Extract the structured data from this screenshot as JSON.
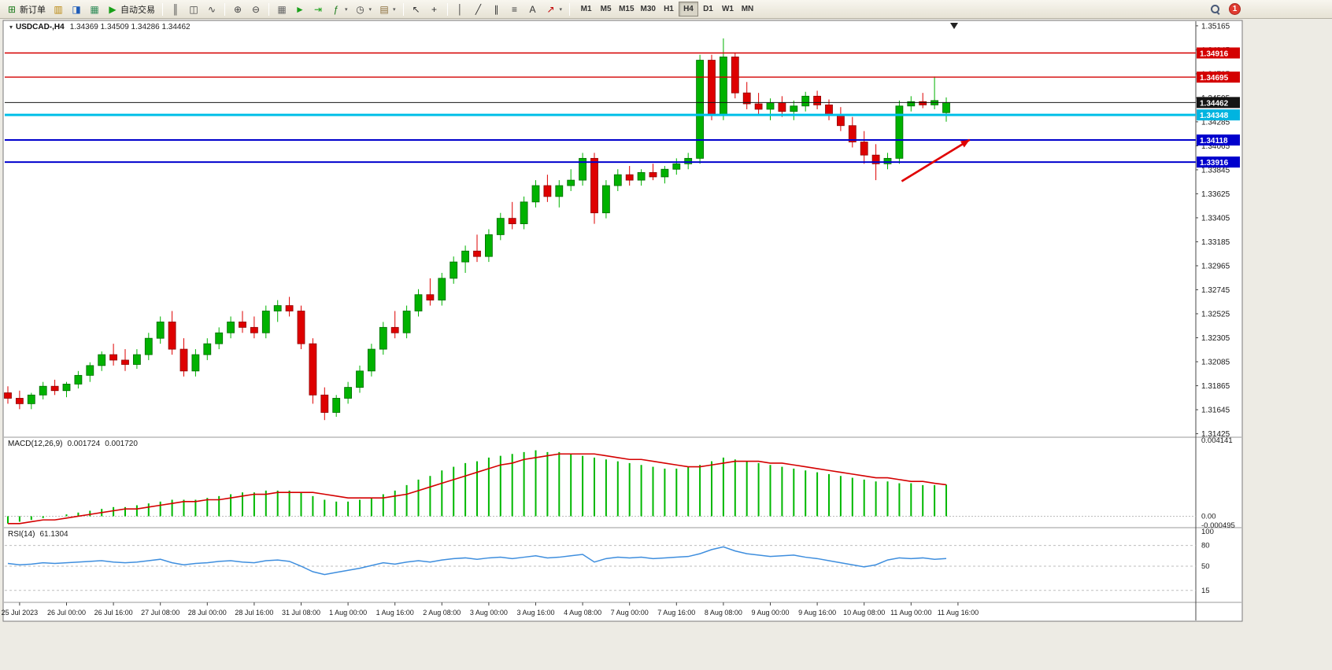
{
  "toolbar": {
    "timeframes": [
      "M1",
      "M5",
      "M15",
      "M30",
      "H1",
      "H4",
      "D1",
      "W1",
      "MN"
    ],
    "active_timeframe": "H4",
    "notification_count": "1",
    "items": [
      {
        "type": "button",
        "name": "new-order",
        "glyph": "⊞",
        "color": "#1a7a1a",
        "label": "新订单"
      },
      {
        "type": "button",
        "name": "market-watch",
        "glyph": "▥",
        "color": "#b8860b"
      },
      {
        "type": "button",
        "name": "navigator",
        "glyph": "◨",
        "color": "#1e5bb8"
      },
      {
        "type": "button",
        "name": "terminal",
        "glyph": "▦",
        "color": "#2e8b57"
      },
      {
        "type": "button",
        "name": "auto-trading",
        "glyph": "▶",
        "color": "#18a018",
        "label": "自动交易"
      },
      {
        "type": "sep"
      },
      {
        "type": "button",
        "name": "bar-chart",
        "glyph": "║",
        "color": "#444"
      },
      {
        "type": "button",
        "name": "candlestick-chart",
        "glyph": "◫",
        "color": "#444"
      },
      {
        "type": "button",
        "name": "line-chart",
        "glyph": "∿",
        "color": "#444"
      },
      {
        "type": "sep"
      },
      {
        "type": "button",
        "name": "zoom-in",
        "glyph": "⊕",
        "color": "#444"
      },
      {
        "type": "button",
        "name": "zoom-out",
        "glyph": "⊖",
        "color": "#444"
      },
      {
        "type": "sep"
      },
      {
        "type": "button",
        "name": "tile-windows",
        "glyph": "▦",
        "color": "#666"
      },
      {
        "type": "button",
        "name": "auto-scroll",
        "glyph": "►",
        "color": "#18a018"
      },
      {
        "type": "button",
        "name": "chart-shift",
        "glyph": "⇥",
        "color": "#18a018"
      },
      {
        "type": "button",
        "name": "indicators",
        "glyph": "ƒ",
        "color": "#1a7a1a",
        "dropdown": true
      },
      {
        "type": "button",
        "name": "periods",
        "glyph": "◷",
        "color": "#444",
        "dropdown": true
      },
      {
        "type": "button",
        "name": "templates",
        "glyph": "▤",
        "color": "#8a6d3b",
        "dropdown": true
      },
      {
        "type": "sep"
      },
      {
        "type": "button",
        "name": "cursor",
        "glyph": "↖",
        "color": "#333"
      },
      {
        "type": "button",
        "name": "crosshair",
        "glyph": "+",
        "color": "#333"
      },
      {
        "type": "sep"
      },
      {
        "type": "button",
        "name": "vertical-line",
        "glyph": "│",
        "color": "#333"
      },
      {
        "type": "button",
        "name": "trendline",
        "glyph": "╱",
        "color": "#333"
      },
      {
        "type": "button",
        "name": "equidistant-channel",
        "glyph": "∥",
        "color": "#333"
      },
      {
        "type": "button",
        "name": "fibonacci",
        "glyph": "≡",
        "color": "#333"
      },
      {
        "type": "button",
        "name": "text",
        "glyph": "A",
        "color": "#333"
      },
      {
        "type": "button",
        "name": "arrows",
        "glyph": "↗",
        "color": "#c00000",
        "dropdown": true
      },
      {
        "type": "sep"
      },
      {
        "type": "timeframes"
      }
    ]
  },
  "chart": {
    "symbol_period": "USDCAD-,H4",
    "ohlc": "1.34369 1.34509 1.34286 1.34462"
  },
  "macd_panel": {
    "label": "MACD(12,26,9)",
    "value_main": "0.001724",
    "value_signal": "0.001720"
  },
  "rsi_panel": {
    "label": "RSI(14)",
    "value": "61.1304"
  },
  "chart_data": {
    "type": "candlestick",
    "symbol": "USDCAD",
    "period": "H4",
    "bull_color": "#00b200",
    "bear_color": "#de0000",
    "macd_color": "#00b800",
    "signal_color": "#d40000",
    "rsi_color": "#3e8ede",
    "y_axis": {
      "min": 1.314,
      "max": 1.352,
      "labels": [
        "1.35165",
        "1.34945",
        "1.34725",
        "1.34505",
        "1.34285",
        "1.34065",
        "1.33845",
        "1.33625",
        "1.33405",
        "1.33185",
        "1.32965",
        "1.32745",
        "1.32525",
        "1.32305",
        "1.32085",
        "1.31865",
        "1.31645",
        "1.31425"
      ]
    },
    "x_axis": {
      "label_start_index": 1,
      "label_step": 4,
      "labels": [
        "25 Jul 2023",
        "26 Jul 00:00",
        "26 Jul 16:00",
        "27 Jul 08:00",
        "28 Jul 00:00",
        "28 Jul 16:00",
        "31 Jul 08:00",
        "1 Aug 00:00",
        "1 Aug 16:00",
        "2 Aug 08:00",
        "3 Aug 00:00",
        "3 Aug 16:00",
        "4 Aug 08:00",
        "7 Aug 00:00",
        "7 Aug 16:00",
        "8 Aug 08:00",
        "9 Aug 00:00",
        "9 Aug 16:00",
        "10 Aug 08:00",
        "11 Aug 00:00",
        "11 Aug 16:00"
      ]
    },
    "candles": [
      [
        1.318,
        1.3186,
        1.317,
        1.3175
      ],
      [
        1.3175,
        1.3182,
        1.3165,
        1.317
      ],
      [
        1.317,
        1.318,
        1.3165,
        1.3178
      ],
      [
        1.3178,
        1.319,
        1.3174,
        1.3186
      ],
      [
        1.3186,
        1.3192,
        1.3178,
        1.3182
      ],
      [
        1.3182,
        1.319,
        1.3176,
        1.3188
      ],
      [
        1.3188,
        1.32,
        1.3184,
        1.3196
      ],
      [
        1.3196,
        1.3208,
        1.319,
        1.3205
      ],
      [
        1.3205,
        1.3218,
        1.32,
        1.3215
      ],
      [
        1.3215,
        1.3225,
        1.3205,
        1.321
      ],
      [
        1.321,
        1.322,
        1.32,
        1.3206
      ],
      [
        1.3206,
        1.322,
        1.3202,
        1.3215
      ],
      [
        1.3215,
        1.3235,
        1.321,
        1.323
      ],
      [
        1.323,
        1.325,
        1.3225,
        1.3245
      ],
      [
        1.3245,
        1.3255,
        1.3215,
        1.322
      ],
      [
        1.322,
        1.323,
        1.3195,
        1.32
      ],
      [
        1.32,
        1.322,
        1.3195,
        1.3215
      ],
      [
        1.3215,
        1.323,
        1.321,
        1.3225
      ],
      [
        1.3225,
        1.324,
        1.322,
        1.3235
      ],
      [
        1.3235,
        1.325,
        1.323,
        1.3245
      ],
      [
        1.3245,
        1.3255,
        1.3235,
        1.324
      ],
      [
        1.324,
        1.325,
        1.323,
        1.3235
      ],
      [
        1.3235,
        1.326,
        1.323,
        1.3255
      ],
      [
        1.3255,
        1.3265,
        1.3245,
        1.326
      ],
      [
        1.326,
        1.3268,
        1.325,
        1.3255
      ],
      [
        1.3255,
        1.326,
        1.322,
        1.3225
      ],
      [
        1.3225,
        1.323,
        1.317,
        1.3178
      ],
      [
        1.3178,
        1.3185,
        1.3155,
        1.3162
      ],
      [
        1.3162,
        1.3178,
        1.3158,
        1.3175
      ],
      [
        1.3175,
        1.319,
        1.317,
        1.3185
      ],
      [
        1.3185,
        1.3205,
        1.318,
        1.32
      ],
      [
        1.32,
        1.3225,
        1.3195,
        1.322
      ],
      [
        1.322,
        1.3245,
        1.3215,
        1.324
      ],
      [
        1.324,
        1.3255,
        1.323,
        1.3235
      ],
      [
        1.3235,
        1.326,
        1.323,
        1.3255
      ],
      [
        1.3255,
        1.3275,
        1.325,
        1.327
      ],
      [
        1.327,
        1.3285,
        1.326,
        1.3265
      ],
      [
        1.3265,
        1.329,
        1.326,
        1.3285
      ],
      [
        1.3285,
        1.3305,
        1.328,
        1.33
      ],
      [
        1.33,
        1.3315,
        1.329,
        1.331
      ],
      [
        1.331,
        1.3325,
        1.33,
        1.3305
      ],
      [
        1.3305,
        1.333,
        1.33,
        1.3325
      ],
      [
        1.3325,
        1.3345,
        1.332,
        1.334
      ],
      [
        1.334,
        1.3355,
        1.333,
        1.3335
      ],
      [
        1.3335,
        1.336,
        1.333,
        1.3355
      ],
      [
        1.3355,
        1.3375,
        1.335,
        1.337
      ],
      [
        1.337,
        1.338,
        1.3355,
        1.336
      ],
      [
        1.336,
        1.3375,
        1.335,
        1.337
      ],
      [
        1.337,
        1.3385,
        1.3365,
        1.3375
      ],
      [
        1.3375,
        1.34,
        1.337,
        1.3395
      ],
      [
        1.3395,
        1.34,
        1.3335,
        1.3345
      ],
      [
        1.3345,
        1.3375,
        1.334,
        1.337
      ],
      [
        1.337,
        1.3385,
        1.3365,
        1.338
      ],
      [
        1.338,
        1.3388,
        1.337,
        1.3375
      ],
      [
        1.3375,
        1.3385,
        1.337,
        1.3382
      ],
      [
        1.3382,
        1.339,
        1.3375,
        1.3378
      ],
      [
        1.3378,
        1.3388,
        1.3372,
        1.3385
      ],
      [
        1.3385,
        1.3395,
        1.338,
        1.339
      ],
      [
        1.339,
        1.34,
        1.3385,
        1.3395
      ],
      [
        1.3395,
        1.349,
        1.339,
        1.3485
      ],
      [
        1.3485,
        1.349,
        1.343,
        1.3435
      ],
      [
        1.3435,
        1.3505,
        1.343,
        1.3488
      ],
      [
        1.3488,
        1.3492,
        1.345,
        1.3455
      ],
      [
        1.3455,
        1.3465,
        1.344,
        1.3445
      ],
      [
        1.3445,
        1.3455,
        1.3435,
        1.344
      ],
      [
        1.344,
        1.345,
        1.343,
        1.3446
      ],
      [
        1.3446,
        1.3452,
        1.3433,
        1.3438
      ],
      [
        1.3438,
        1.3448,
        1.343,
        1.3443
      ],
      [
        1.3443,
        1.3456,
        1.3438,
        1.3452
      ],
      [
        1.3452,
        1.3457,
        1.344,
        1.3444
      ],
      [
        1.3444,
        1.3449,
        1.343,
        1.3435
      ],
      [
        1.3435,
        1.3442,
        1.342,
        1.3425
      ],
      [
        1.3425,
        1.3433,
        1.3405,
        1.341
      ],
      [
        1.341,
        1.342,
        1.339,
        1.3398
      ],
      [
        1.3398,
        1.3408,
        1.3375,
        1.339
      ],
      [
        1.339,
        1.34,
        1.3385,
        1.3395
      ],
      [
        1.3395,
        1.3448,
        1.339,
        1.3443
      ],
      [
        1.3443,
        1.3452,
        1.3438,
        1.3447
      ],
      [
        1.3447,
        1.3455,
        1.3441,
        1.3444
      ],
      [
        1.3444,
        1.347,
        1.344,
        1.3448
      ],
      [
        1.34369,
        1.34509,
        1.34286,
        1.34462
      ]
    ],
    "hlines": [
      {
        "name": "resistance-line-1",
        "price": 1.34916,
        "label": "1.34916",
        "color": "#d40000",
        "badge": "#d40000",
        "width": 1.4
      },
      {
        "name": "resistance-line-2",
        "price": 1.34695,
        "label": "1.34695",
        "color": "#d40000",
        "badge": "#d40000",
        "width": 1.4
      },
      {
        "name": "current-price-line",
        "price": 1.34462,
        "label": "1.34462",
        "color": "#151515",
        "badge": "#151515",
        "width": 1
      },
      {
        "name": "support-line-cyan",
        "price": 1.34348,
        "label": "1.34348",
        "color": "#00bfe8",
        "badge": "#00b4e0",
        "width": 3
      },
      {
        "name": "support-line-blue-1",
        "price": 1.34118,
        "label": "1.34118",
        "color": "#0000cd",
        "badge": "#0000cd",
        "width": 2
      },
      {
        "name": "support-line-blue-2",
        "price": 1.33916,
        "label": "1.33916",
        "color": "#0000cd",
        "badge": "#0000cd",
        "width": 2
      }
    ],
    "arrow": {
      "from": {
        "index": 76.2,
        "price": 1.3374
      },
      "to": {
        "index": 82.0,
        "price": 1.3412
      },
      "color": "#e00000"
    },
    "macd": {
      "scale_max": 0.004141,
      "scale_min": -0.000495,
      "scale_labels": [
        "0.004141",
        "0.00",
        "-0.000495"
      ],
      "histogram": [
        -0.0004,
        -0.0003,
        -0.0002,
        -0.0001,
        0.0,
        0.0001,
        0.0002,
        0.0003,
        0.0004,
        0.0005,
        0.0005,
        0.0006,
        0.0007,
        0.0008,
        0.0009,
        0.0009,
        0.0009,
        0.001,
        0.0011,
        0.0012,
        0.0013,
        0.0013,
        0.0014,
        0.0014,
        0.0014,
        0.0013,
        0.0011,
        0.0009,
        0.0008,
        0.0008,
        0.0009,
        0.001,
        0.0012,
        0.0014,
        0.0017,
        0.002,
        0.0022,
        0.0025,
        0.0027,
        0.0029,
        0.003,
        0.0032,
        0.0033,
        0.0034,
        0.0035,
        0.0036,
        0.0035,
        0.0035,
        0.0034,
        0.0033,
        0.0032,
        0.0031,
        0.003,
        0.0029,
        0.0028,
        0.0027,
        0.0026,
        0.0026,
        0.0027,
        0.0028,
        0.003,
        0.0032,
        0.0031,
        0.003,
        0.0029,
        0.0028,
        0.0027,
        0.0026,
        0.0025,
        0.0024,
        0.0023,
        0.0022,
        0.0021,
        0.002,
        0.0019,
        0.0019,
        0.0018,
        0.0018,
        0.0017,
        0.0017,
        0.001724
      ],
      "signal": [
        -0.0004,
        -0.0004,
        -0.0003,
        -0.0002,
        -0.0002,
        -0.0001,
        0.0,
        0.0001,
        0.0002,
        0.0003,
        0.0004,
        0.0004,
        0.0005,
        0.0006,
        0.0007,
        0.0008,
        0.0008,
        0.0009,
        0.0009,
        0.001,
        0.0011,
        0.0012,
        0.0012,
        0.0013,
        0.0013,
        0.0013,
        0.0013,
        0.0012,
        0.0011,
        0.001,
        0.001,
        0.001,
        0.001,
        0.0011,
        0.0012,
        0.0014,
        0.0016,
        0.0018,
        0.002,
        0.0022,
        0.0024,
        0.0026,
        0.0028,
        0.0029,
        0.0031,
        0.0032,
        0.0033,
        0.0034,
        0.0034,
        0.0034,
        0.0034,
        0.0033,
        0.0032,
        0.0031,
        0.0031,
        0.003,
        0.0029,
        0.0028,
        0.0027,
        0.0027,
        0.0028,
        0.0029,
        0.003,
        0.003,
        0.003,
        0.0029,
        0.0029,
        0.0028,
        0.0027,
        0.0026,
        0.0025,
        0.0024,
        0.0023,
        0.0022,
        0.0021,
        0.0021,
        0.002,
        0.0019,
        0.0019,
        0.0018,
        0.00172
      ]
    },
    "rsi": {
      "levels": [
        80,
        50,
        15
      ],
      "scale_labels": [
        "100",
        "80",
        "50",
        "15"
      ],
      "values": [
        54,
        52,
        53,
        55,
        54,
        55,
        56,
        57,
        58,
        56,
        55,
        56,
        58,
        60,
        55,
        52,
        54,
        55,
        57,
        58,
        56,
        55,
        58,
        59,
        57,
        50,
        42,
        38,
        41,
        44,
        47,
        51,
        55,
        53,
        56,
        58,
        56,
        59,
        61,
        62,
        60,
        62,
        63,
        61,
        63,
        65,
        62,
        63,
        65,
        67,
        56,
        61,
        63,
        62,
        63,
        61,
        62,
        63,
        64,
        68,
        74,
        78,
        72,
        68,
        66,
        64,
        65,
        66,
        63,
        61,
        58,
        55,
        52,
        49,
        52,
        59,
        62,
        61,
        62,
        60,
        61.1304
      ]
    }
  }
}
